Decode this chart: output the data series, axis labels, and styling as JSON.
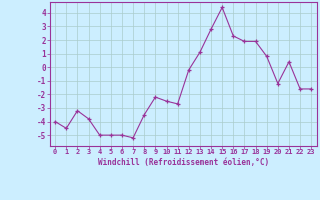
{
  "x": [
    0,
    1,
    2,
    3,
    4,
    5,
    6,
    7,
    8,
    9,
    10,
    11,
    12,
    13,
    14,
    15,
    16,
    17,
    18,
    19,
    20,
    21,
    22,
    23
  ],
  "y": [
    -4.0,
    -4.5,
    -3.2,
    -3.8,
    -5.0,
    -5.0,
    -5.0,
    -5.2,
    -3.5,
    -2.2,
    -2.5,
    -2.7,
    -0.2,
    1.1,
    2.8,
    4.4,
    2.3,
    1.9,
    1.9,
    0.8,
    -1.2,
    0.4,
    -1.6,
    -1.6
  ],
  "line_color": "#993399",
  "marker": "+",
  "marker_size": 3,
  "bg_color": "#cceeff",
  "grid_color": "#aacccc",
  "xlabel": "Windchill (Refroidissement éolien,°C)",
  "xlim": [
    -0.5,
    23.5
  ],
  "ylim": [
    -5.8,
    4.8
  ],
  "yticks": [
    -5,
    -4,
    -3,
    -2,
    -1,
    0,
    1,
    2,
    3,
    4
  ],
  "xticks": [
    0,
    1,
    2,
    3,
    4,
    5,
    6,
    7,
    8,
    9,
    10,
    11,
    12,
    13,
    14,
    15,
    16,
    17,
    18,
    19,
    20,
    21,
    22,
    23
  ],
  "xtick_labels": [
    "0",
    "1",
    "2",
    "3",
    "4",
    "5",
    "6",
    "7",
    "8",
    "9",
    "10",
    "11",
    "12",
    "13",
    "14",
    "15",
    "16",
    "17",
    "18",
    "19",
    "20",
    "21",
    "22",
    "23"
  ],
  "label_color": "#993399",
  "tick_color": "#993399"
}
